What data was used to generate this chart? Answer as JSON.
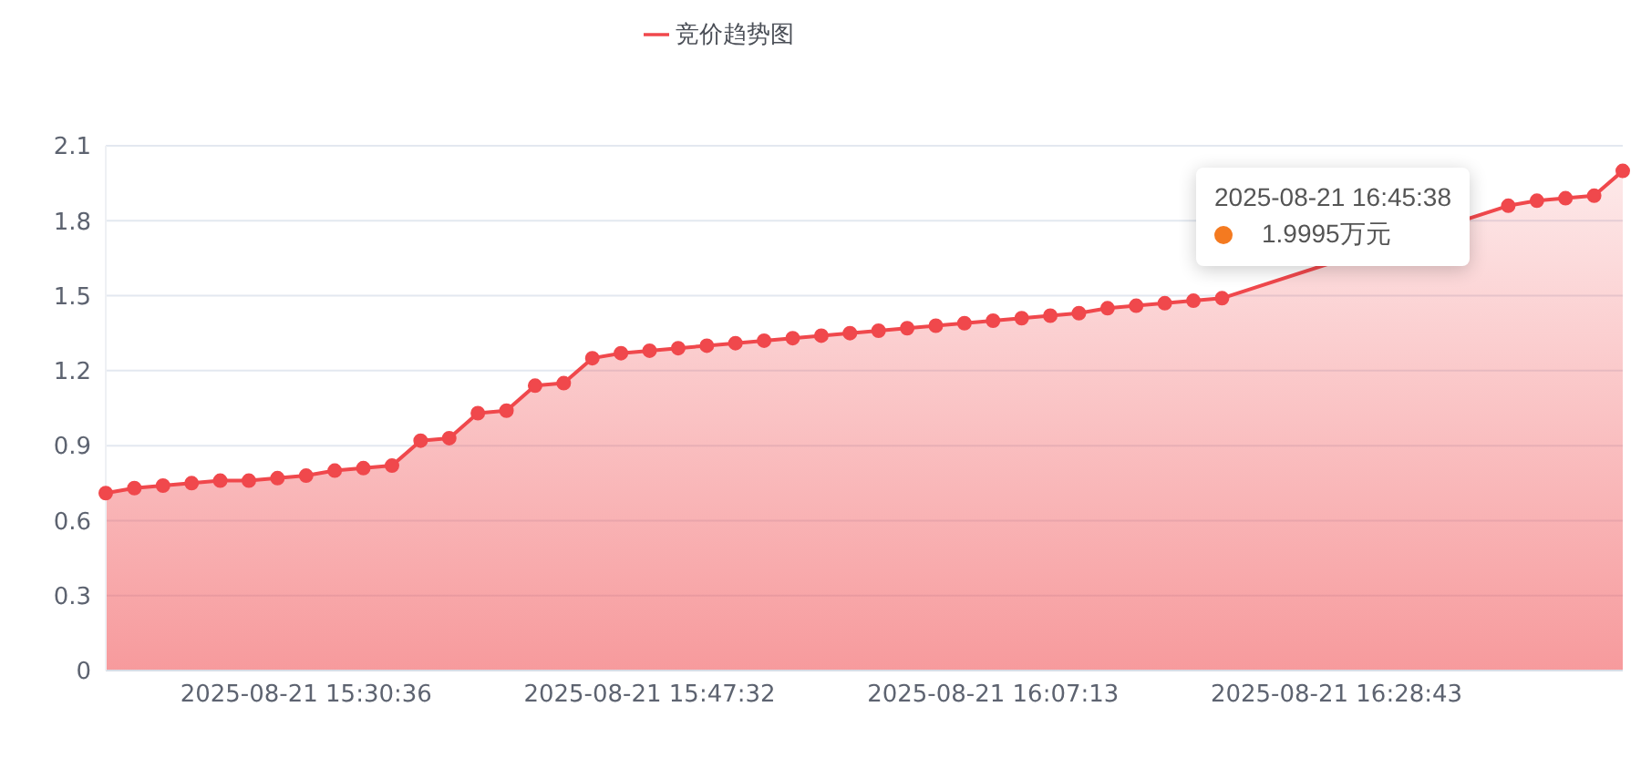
{
  "chart_data": {
    "type": "area",
    "categories": [
      null,
      null,
      null,
      null,
      null,
      null,
      null,
      "2025-08-21 15:30:36",
      null,
      null,
      null,
      null,
      null,
      null,
      null,
      null,
      null,
      null,
      null,
      "2025-08-21 15:47:32",
      null,
      null,
      null,
      null,
      null,
      null,
      null,
      null,
      null,
      null,
      null,
      "2025-08-21 16:07:13",
      null,
      null,
      null,
      null,
      null,
      null,
      null,
      null,
      null,
      null,
      null,
      "2025-08-21 16:28:43",
      null,
      null,
      null,
      null,
      null,
      null,
      null,
      null,
      null,
      null
    ],
    "series": [
      {
        "name": "竞价趋势图",
        "color": "#f0484c",
        "values": [
          0.71,
          0.73,
          0.74,
          0.75,
          0.76,
          0.76,
          0.77,
          0.78,
          0.8,
          0.81,
          0.82,
          0.92,
          0.93,
          1.03,
          1.04,
          1.14,
          1.15,
          1.25,
          1.27,
          1.28,
          1.29,
          1.3,
          1.31,
          1.32,
          1.33,
          1.34,
          1.35,
          1.36,
          1.37,
          1.38,
          1.39,
          1.4,
          1.41,
          1.42,
          1.43,
          1.45,
          1.46,
          1.47,
          1.48,
          1.49,
          null,
          null,
          null,
          null,
          null,
          null,
          null,
          null,
          null,
          1.86,
          1.88,
          1.89,
          1.9,
          1.9995
        ]
      }
    ],
    "ylim": [
      0,
      2.1
    ],
    "yticks": [
      0,
      0.3,
      0.6,
      0.9,
      1.2,
      1.5,
      1.8,
      2.1
    ],
    "grid": "y",
    "legend": "top",
    "marker": "circle",
    "annotations": [
      "2025-08-21 16:45:38",
      "1.9995万元"
    ]
  }
}
